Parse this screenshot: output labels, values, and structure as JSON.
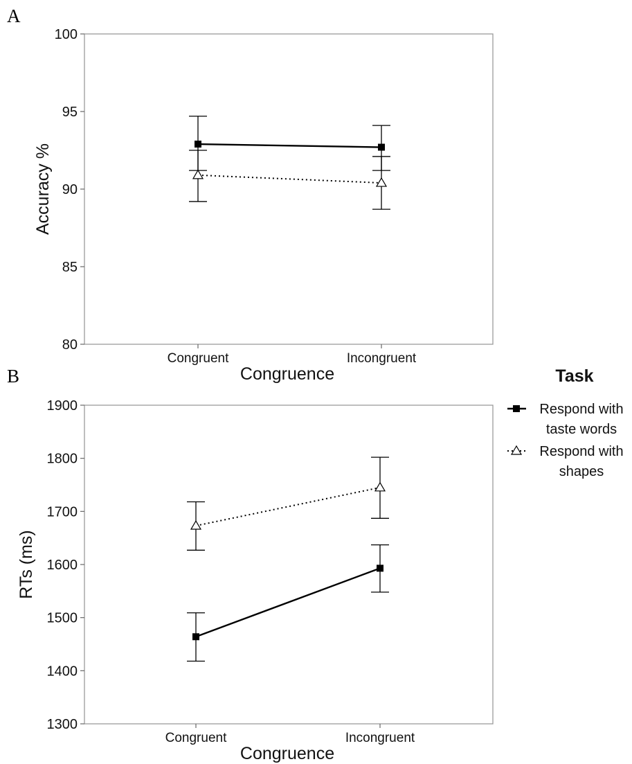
{
  "chart_data": [
    {
      "panel": "A",
      "type": "line",
      "xlabel": "Congruence",
      "ylabel": "Accuracy %",
      "categories": [
        "Congruent",
        "Incongruent"
      ],
      "ylim": [
        80,
        100
      ],
      "yticks": [
        80,
        85,
        90,
        95,
        100
      ],
      "grid": false,
      "series": [
        {
          "name": "Respond with taste words",
          "values": [
            92.9,
            92.7
          ],
          "err_low": [
            91.2,
            91.2
          ],
          "err_high": [
            94.7,
            94.1
          ],
          "style": "solid",
          "marker": "square"
        },
        {
          "name": "Respond with shapes",
          "values": [
            90.9,
            90.4
          ],
          "err_low": [
            89.2,
            88.7
          ],
          "err_high": [
            92.5,
            92.1
          ],
          "style": "dotted",
          "marker": "triangle"
        }
      ]
    },
    {
      "panel": "B",
      "type": "line",
      "xlabel": "Congruence",
      "ylabel": "RTs (ms)",
      "categories": [
        "Congruent",
        "Incongruent"
      ],
      "ylim": [
        1300,
        1900
      ],
      "yticks": [
        1300,
        1400,
        1500,
        1600,
        1700,
        1800,
        1900
      ],
      "grid": false,
      "series": [
        {
          "name": "Respond with taste words",
          "values": [
            1464,
            1593
          ],
          "err_low": [
            1418,
            1548
          ],
          "err_high": [
            1509,
            1637
          ],
          "style": "solid",
          "marker": "square"
        },
        {
          "name": "Respond with shapes",
          "values": [
            1673,
            1745
          ],
          "err_low": [
            1627,
            1687
          ],
          "err_high": [
            1718,
            1802
          ],
          "style": "dotted",
          "marker": "triangle"
        }
      ]
    }
  ],
  "legend": {
    "title": "Task",
    "placement": "right",
    "items": [
      {
        "lines": [
          "Respond with",
          "taste words"
        ],
        "style": "solid",
        "marker": "square"
      },
      {
        "lines": [
          "Respond with",
          "shapes"
        ],
        "style": "dotted",
        "marker": "triangle"
      }
    ]
  }
}
